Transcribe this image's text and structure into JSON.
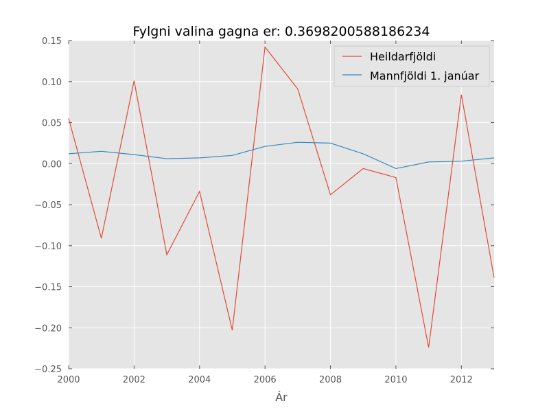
{
  "chart_data": {
    "type": "line",
    "title": "Fylgni valina gagna er: 0.3698200588186234",
    "xlabel": "Ár",
    "ylabel": "",
    "xlim": [
      2000,
      2013
    ],
    "ylim": [
      -0.25,
      0.15
    ],
    "x_ticks": [
      2000,
      2002,
      2004,
      2006,
      2008,
      2010,
      2012
    ],
    "x_tick_labels": [
      "2000",
      "2002",
      "2004",
      "2006",
      "2008",
      "2010",
      "2012"
    ],
    "y_ticks": [
      -0.25,
      -0.2,
      -0.15,
      -0.1,
      -0.05,
      0.0,
      0.05,
      0.1,
      0.15
    ],
    "y_tick_labels": [
      "−0.25",
      "−0.20",
      "−0.15",
      "−0.10",
      "−0.05",
      "0.00",
      "0.05",
      "0.10",
      "0.15"
    ],
    "grid": true,
    "legend_position": "top-right",
    "x": [
      2000,
      2001,
      2002,
      2003,
      2004,
      2005,
      2006,
      2007,
      2008,
      2009,
      2010,
      2011,
      2012,
      2013
    ],
    "series": [
      {
        "name": "Heildarfjöldi",
        "color": "#e24a33",
        "values": [
          0.055,
          -0.091,
          0.101,
          -0.111,
          -0.034,
          -0.203,
          0.142,
          0.091,
          -0.038,
          -0.006,
          -0.017,
          -0.224,
          0.084,
          -0.139
        ]
      },
      {
        "name": "Mannfjöldi 1. janúar",
        "color": "#348abd",
        "values": [
          0.012,
          0.015,
          0.011,
          0.006,
          0.007,
          0.01,
          0.021,
          0.026,
          0.025,
          0.012,
          -0.006,
          0.002,
          0.003,
          0.007
        ]
      }
    ],
    "background_color": "#e5e5e5",
    "grid_color": "#ffffff"
  }
}
